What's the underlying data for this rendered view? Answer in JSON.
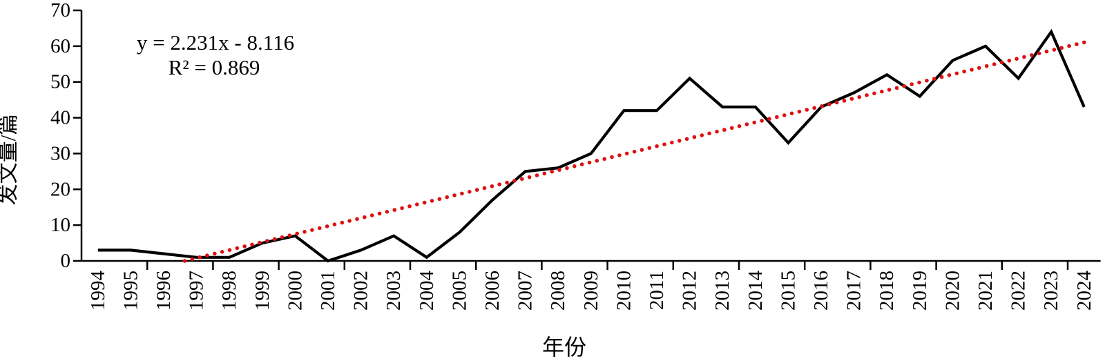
{
  "chart_data": {
    "type": "line",
    "title": "",
    "xlabel": "年份",
    "ylabel": "发文量/篇",
    "categories": [
      "1994",
      "1995",
      "1996",
      "1997",
      "1998",
      "1999",
      "2000",
      "2001",
      "2002",
      "2003",
      "2004",
      "2005",
      "2006",
      "2007",
      "2008",
      "2009",
      "2010",
      "2011",
      "2012",
      "2013",
      "2014",
      "2015",
      "2016",
      "2017",
      "2018",
      "2019",
      "2020",
      "2021",
      "2022",
      "2023",
      "2024"
    ],
    "series": [
      {
        "name": "发文量",
        "values": [
          3,
          3,
          2,
          1,
          1,
          5,
          7,
          0,
          3,
          7,
          1,
          8,
          17,
          25,
          26,
          30,
          42,
          42,
          51,
          43,
          43,
          33,
          43,
          47,
          52,
          46,
          56,
          60,
          51,
          64,
          43
        ],
        "color": "#000000",
        "style": "solid"
      }
    ],
    "trendline": {
      "equation": "y = 2.231x - 8.116",
      "r_squared": "R² = 0.869",
      "slope": 2.231,
      "intercept": -8.116,
      "color": "#dd1111",
      "style": "dotted"
    },
    "ylim": [
      0,
      70
    ],
    "y_ticks": [
      0,
      10,
      20,
      30,
      40,
      50,
      60,
      70
    ],
    "x_tick_interval": 2,
    "grid": false,
    "legend": "none"
  }
}
